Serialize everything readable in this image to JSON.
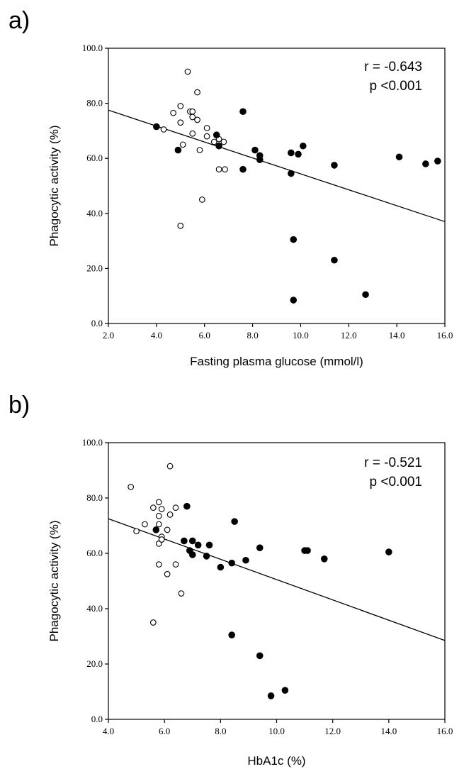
{
  "panels": [
    {
      "label": "a)"
    },
    {
      "label": "b)"
    }
  ],
  "chart_data": [
    {
      "type": "scatter",
      "title": "",
      "xlabel": "Fasting plasma glucose (mmol/l)",
      "ylabel": "Phagocytic activity (%)",
      "xlim": [
        2.0,
        16.0
      ],
      "ylim": [
        0.0,
        100.0
      ],
      "xticks": [
        "2.0",
        "4.0",
        "6.0",
        "8.0",
        "10.0",
        "12.0",
        "14.0",
        "16.0"
      ],
      "yticks": [
        "0.0",
        "20.0",
        "40.0",
        "60.0",
        "80.0",
        "100.0"
      ],
      "grid": false,
      "legend": "none",
      "annotation": [
        "r = -0.643",
        "p <0.001"
      ],
      "fit_line": {
        "x": [
          2.0,
          16.0
        ],
        "y": [
          77.5,
          37.0
        ]
      },
      "series": [
        {
          "marker": "open-circle",
          "points": [
            [
              4.3,
              70.5
            ],
            [
              4.7,
              76.5
            ],
            [
              5.0,
              79.0
            ],
            [
              5.0,
              73.0
            ],
            [
              5.1,
              65.0
            ],
            [
              5.0,
              35.5
            ],
            [
              5.3,
              91.5
            ],
            [
              5.4,
              77.0
            ],
            [
              5.5,
              77.0
            ],
            [
              5.5,
              75.0
            ],
            [
              5.5,
              69.0
            ],
            [
              5.7,
              84.0
            ],
            [
              5.7,
              74.0
            ],
            [
              5.8,
              63.0
            ],
            [
              5.9,
              45.0
            ],
            [
              6.1,
              71.0
            ],
            [
              6.1,
              68.0
            ],
            [
              6.4,
              66.0
            ],
            [
              6.6,
              67.0
            ],
            [
              6.8,
              66.0
            ],
            [
              6.6,
              56.0
            ],
            [
              6.85,
              56.0
            ]
          ]
        },
        {
          "marker": "filled-circle",
          "points": [
            [
              4.0,
              71.5
            ],
            [
              4.9,
              63.0
            ],
            [
              6.5,
              68.5
            ],
            [
              6.6,
              64.5
            ],
            [
              7.6,
              77.0
            ],
            [
              7.6,
              56.0
            ],
            [
              8.1,
              63.0
            ],
            [
              8.3,
              61.0
            ],
            [
              8.3,
              59.5
            ],
            [
              9.6,
              62.0
            ],
            [
              9.6,
              54.5
            ],
            [
              9.7,
              30.5
            ],
            [
              9.7,
              8.5
            ],
            [
              9.9,
              61.5
            ],
            [
              10.1,
              64.5
            ],
            [
              11.4,
              57.5
            ],
            [
              11.4,
              23.0
            ],
            [
              12.7,
              10.5
            ],
            [
              14.1,
              60.5
            ],
            [
              15.2,
              58.0
            ],
            [
              15.7,
              59.0
            ]
          ]
        }
      ]
    },
    {
      "type": "scatter",
      "title": "",
      "xlabel": "HbA1c (%)",
      "ylabel": "Phagocytic activity (%)",
      "xlim": [
        4.0,
        16.0
      ],
      "ylim": [
        0.0,
        100.0
      ],
      "xticks": [
        "4.0",
        "6.0",
        "8.0",
        "10.0",
        "12.0",
        "14.0",
        "16.0"
      ],
      "yticks": [
        "0.0",
        "20.0",
        "40.0",
        "60.0",
        "80.0",
        "100.0"
      ],
      "grid": false,
      "legend": "none",
      "annotation": [
        "r = -0.521",
        "p <0.001"
      ],
      "fit_line": {
        "x": [
          4.0,
          16.0
        ],
        "y": [
          72.5,
          28.5
        ]
      },
      "series": [
        {
          "marker": "open-circle",
          "points": [
            [
              4.8,
              84.0
            ],
            [
              5.0,
              68.0
            ],
            [
              5.3,
              70.5
            ],
            [
              5.6,
              76.5
            ],
            [
              5.8,
              78.5
            ],
            [
              5.8,
              73.5
            ],
            [
              5.8,
              70.5
            ],
            [
              5.8,
              63.5
            ],
            [
              5.9,
              76.0
            ],
            [
              5.9,
              66.0
            ],
            [
              5.9,
              65.0
            ],
            [
              5.8,
              56.0
            ],
            [
              5.6,
              35.0
            ],
            [
              6.1,
              68.5
            ],
            [
              6.2,
              91.5
            ],
            [
              6.2,
              74.0
            ],
            [
              6.4,
              76.5
            ],
            [
              6.1,
              52.5
            ],
            [
              6.4,
              56.0
            ],
            [
              6.6,
              45.5
            ]
          ]
        },
        {
          "marker": "filled-circle",
          "points": [
            [
              5.7,
              68.5
            ],
            [
              6.7,
              64.5
            ],
            [
              6.8,
              77.0
            ],
            [
              6.9,
              61.0
            ],
            [
              7.0,
              64.5
            ],
            [
              7.0,
              59.5
            ],
            [
              7.2,
              63.0
            ],
            [
              7.5,
              59.0
            ],
            [
              7.6,
              63.0
            ],
            [
              8.0,
              55.0
            ],
            [
              8.4,
              56.5
            ],
            [
              8.4,
              30.5
            ],
            [
              8.5,
              71.5
            ],
            [
              8.9,
              57.5
            ],
            [
              9.4,
              62.0
            ],
            [
              9.4,
              23.0
            ],
            [
              9.8,
              8.5
            ],
            [
              10.3,
              10.5
            ],
            [
              11.0,
              61.0
            ],
            [
              11.1,
              61.0
            ],
            [
              11.7,
              58.0
            ],
            [
              14.0,
              60.5
            ]
          ]
        }
      ]
    }
  ]
}
